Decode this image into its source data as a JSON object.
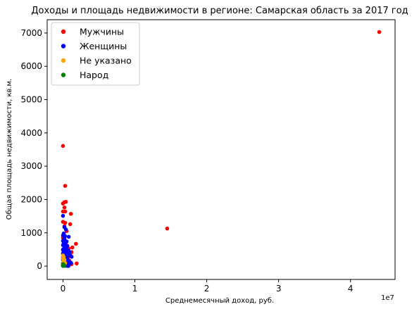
{
  "chart_data": {
    "type": "scatter",
    "title": "Доходы и площадь недвижимости в регионе: Самарская область за 2017 год",
    "xlabel": "Среднемесячный доход, руб.",
    "ylabel": "Общая площадь недвижимости, кв.м.",
    "x_offset_label": "1e7",
    "xlim": [
      -0.22,
      4.62
    ],
    "ylim": [
      -400,
      7400
    ],
    "x_ticks": [
      0,
      1,
      2,
      3,
      4
    ],
    "y_ticks": [
      0,
      1000,
      2000,
      3000,
      4000,
      5000,
      6000,
      7000
    ],
    "grid": false,
    "legend_position": "top-left",
    "series": [
      {
        "name": "Мужчины",
        "color": "#ff0000",
        "points": [
          [
            4.4,
            7030
          ],
          [
            0.0,
            3610
          ],
          [
            0.03,
            2410
          ],
          [
            1.45,
            1130
          ],
          [
            0.02,
            1920
          ],
          [
            0.04,
            1930
          ],
          [
            0.0,
            1880
          ],
          [
            0.02,
            1760
          ],
          [
            0.0,
            1640
          ],
          [
            0.03,
            1640
          ],
          [
            0.11,
            1570
          ],
          [
            0.0,
            1330
          ],
          [
            0.03,
            1300
          ],
          [
            0.1,
            1260
          ],
          [
            0.02,
            1200
          ],
          [
            0.05,
            1050
          ],
          [
            0.01,
            960
          ],
          [
            0.0,
            850
          ],
          [
            0.04,
            700
          ],
          [
            0.18,
            670
          ],
          [
            0.06,
            610
          ],
          [
            0.13,
            560
          ],
          [
            0.08,
            520
          ],
          [
            0.0,
            480
          ],
          [
            0.02,
            450
          ],
          [
            0.12,
            420
          ],
          [
            0.05,
            390
          ],
          [
            0.1,
            350
          ],
          [
            0.03,
            300
          ],
          [
            0.07,
            260
          ],
          [
            0.0,
            220
          ],
          [
            0.04,
            180
          ],
          [
            0.09,
            160
          ],
          [
            0.02,
            120
          ],
          [
            0.06,
            100
          ],
          [
            0.19,
            80
          ],
          [
            0.12,
            60
          ],
          [
            0.03,
            40
          ],
          [
            0.0,
            20
          ],
          [
            0.08,
            10
          ]
        ]
      },
      {
        "name": "Женщины",
        "color": "#0000ff",
        "points": [
          [
            0.0,
            1510
          ],
          [
            0.02,
            1170
          ],
          [
            0.04,
            1100
          ],
          [
            0.01,
            980
          ],
          [
            0.0,
            920
          ],
          [
            0.03,
            900
          ],
          [
            0.08,
            880
          ],
          [
            0.02,
            820
          ],
          [
            0.0,
            760
          ],
          [
            0.05,
            740
          ],
          [
            0.01,
            700
          ],
          [
            0.03,
            660
          ],
          [
            0.0,
            630
          ],
          [
            0.06,
            600
          ],
          [
            0.02,
            560
          ],
          [
            0.04,
            520
          ],
          [
            0.0,
            500
          ],
          [
            0.07,
            480
          ],
          [
            0.01,
            450
          ],
          [
            0.03,
            420
          ],
          [
            0.05,
            400
          ],
          [
            0.0,
            380
          ],
          [
            0.02,
            350
          ],
          [
            0.09,
            330
          ],
          [
            0.01,
            310
          ],
          [
            0.04,
            290
          ],
          [
            0.0,
            260
          ],
          [
            0.06,
            240
          ],
          [
            0.02,
            220
          ],
          [
            0.0,
            200
          ],
          [
            0.03,
            180
          ],
          [
            0.08,
            160
          ],
          [
            0.01,
            140
          ],
          [
            0.05,
            120
          ],
          [
            0.0,
            100
          ],
          [
            0.02,
            90
          ],
          [
            0.1,
            80
          ],
          [
            0.03,
            60
          ],
          [
            0.0,
            40
          ],
          [
            0.06,
            30
          ],
          [
            0.01,
            20
          ],
          [
            0.04,
            10
          ],
          [
            0.07,
            5
          ],
          [
            0.12,
            280
          ],
          [
            0.11,
            100
          ],
          [
            0.09,
            420
          ]
        ]
      },
      {
        "name": "Не указано",
        "color": "#ffa500",
        "points": [
          [
            0.0,
            320
          ],
          [
            0.01,
            270
          ],
          [
            0.0,
            230
          ],
          [
            0.02,
            190
          ],
          [
            0.01,
            150
          ],
          [
            0.0,
            120
          ],
          [
            0.03,
            90
          ],
          [
            0.01,
            70
          ],
          [
            0.0,
            50
          ],
          [
            0.02,
            30
          ]
        ]
      },
      {
        "name": "Народ",
        "color": "#008000",
        "points": [
          [
            0.0,
            60
          ],
          [
            0.01,
            40
          ],
          [
            0.0,
            20
          ],
          [
            0.02,
            10
          ],
          [
            0.0,
            5
          ]
        ]
      }
    ]
  }
}
